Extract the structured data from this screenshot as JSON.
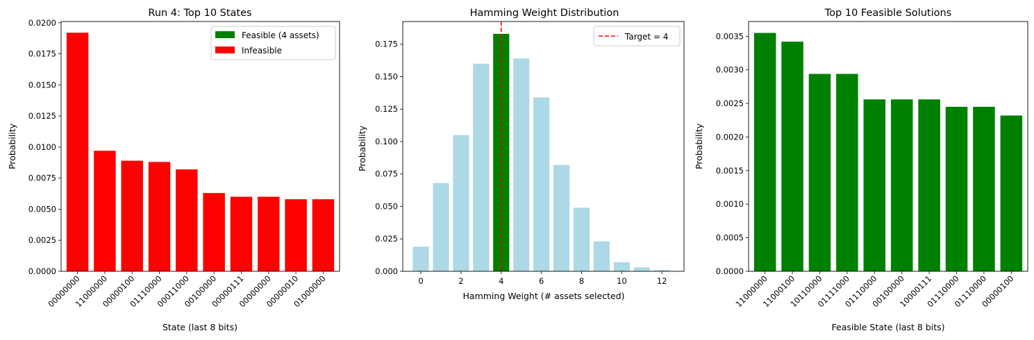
{
  "colors": {
    "feasible": "#008000",
    "infeasible": "#ff0000",
    "hamming_bar": "#add8e6",
    "target_line": "#ff0000"
  },
  "chart_data": [
    {
      "type": "bar",
      "title": "Run 4: Top 10 States",
      "xlabel": "State (last 8 bits)",
      "ylabel": "Probability",
      "categories": [
        "00000000",
        "11000000",
        "00000100",
        "01110000",
        "00011000",
        "00100000",
        "00000111",
        "00000000",
        "00000010",
        "01000000"
      ],
      "values": [
        0.0192,
        0.0097,
        0.0089,
        0.0088,
        0.0082,
        0.0063,
        0.006,
        0.006,
        0.0058,
        0.0058
      ],
      "bar_colors": [
        "infeasible",
        "infeasible",
        "infeasible",
        "infeasible",
        "infeasible",
        "infeasible",
        "infeasible",
        "infeasible",
        "infeasible",
        "infeasible"
      ],
      "ylim": [
        0,
        0.0201
      ],
      "yticks": [
        "0.0000",
        "0.0025",
        "0.0050",
        "0.0075",
        "0.0100",
        "0.0125",
        "0.0150",
        "0.0175",
        "0.0200"
      ],
      "legend": {
        "position": "top-right",
        "entries": [
          {
            "label": "Feasible (4 assets)",
            "color": "feasible"
          },
          {
            "label": "Infeasible",
            "color": "infeasible"
          }
        ]
      },
      "grid": false
    },
    {
      "type": "bar",
      "title": "Hamming Weight Distribution",
      "xlabel": "Hamming Weight (# assets selected)",
      "ylabel": "Probability",
      "x": [
        0,
        1,
        2,
        3,
        4,
        5,
        6,
        7,
        8,
        9,
        10,
        11,
        12
      ],
      "values": [
        0.019,
        0.068,
        0.105,
        0.16,
        0.183,
        0.164,
        0.134,
        0.082,
        0.049,
        0.023,
        0.007,
        0.003,
        0.001
      ],
      "highlight_index": 4,
      "xlim": [
        -0.9,
        13.1
      ],
      "ylim": [
        0,
        0.1925
      ],
      "xticks": [
        "0",
        "2",
        "4",
        "6",
        "8",
        "10",
        "12"
      ],
      "yticks": [
        "0.000",
        "0.025",
        "0.050",
        "0.075",
        "0.100",
        "0.125",
        "0.150",
        "0.175"
      ],
      "target_line": {
        "x": 4,
        "label": "Target = 4"
      },
      "legend": {
        "position": "top-right",
        "entries": [
          {
            "label": "Target = 4",
            "color": "target_line"
          }
        ]
      },
      "grid": false
    },
    {
      "type": "bar",
      "title": "Top 10 Feasible Solutions",
      "xlabel": "Feasible State (last 8 bits)",
      "ylabel": "Probability",
      "categories": [
        "11000000",
        "11000100",
        "10110000",
        "01111000",
        "01110000",
        "00100000",
        "10000111",
        "01110000",
        "01110000",
        "00000100"
      ],
      "values": [
        0.00355,
        0.00342,
        0.00294,
        0.00294,
        0.00256,
        0.00256,
        0.00256,
        0.00245,
        0.00245,
        0.00232
      ],
      "ylim": [
        0,
        0.00372
      ],
      "yticks": [
        "0.0000",
        "0.0005",
        "0.0010",
        "0.0015",
        "0.0020",
        "0.0025",
        "0.0030",
        "0.0035"
      ],
      "grid": false
    }
  ]
}
